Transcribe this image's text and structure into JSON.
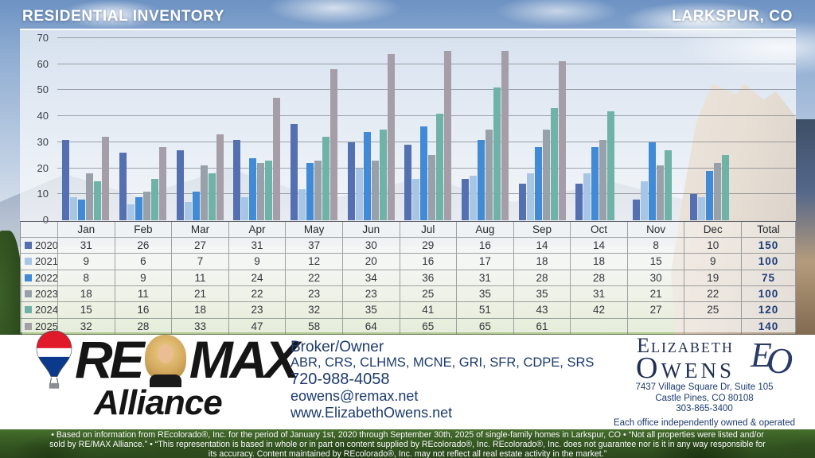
{
  "header": {
    "title": "RESIDENTIAL INVENTORY",
    "location": "LARKSPUR, CO"
  },
  "chart_data": {
    "type": "bar",
    "title": "Residential Inventory by month, Larkspur CO",
    "categories": [
      "Jan",
      "Feb",
      "Mar",
      "Apr",
      "May",
      "Jun",
      "Jul",
      "Aug",
      "Sep",
      "Oct",
      "Nov",
      "Dec"
    ],
    "series": [
      {
        "name": "2020",
        "color": "#5570b0",
        "values": [
          31,
          26,
          27,
          31,
          37,
          30,
          29,
          16,
          14,
          14,
          8,
          10
        ],
        "total": 150
      },
      {
        "name": "2021",
        "color": "#a7c6e6",
        "values": [
          9,
          6,
          7,
          9,
          12,
          20,
          16,
          17,
          18,
          18,
          15,
          9
        ],
        "total": 100
      },
      {
        "name": "2022",
        "color": "#418ad6",
        "values": [
          8,
          9,
          11,
          24,
          22,
          34,
          36,
          31,
          28,
          28,
          30,
          19
        ],
        "total": 75
      },
      {
        "name": "2023",
        "color": "#98a1aa",
        "values": [
          18,
          11,
          21,
          22,
          23,
          23,
          25,
          35,
          35,
          31,
          21,
          22
        ],
        "total": 100
      },
      {
        "name": "2024",
        "color": "#6fb2a7",
        "values": [
          15,
          16,
          18,
          23,
          32,
          35,
          41,
          51,
          43,
          42,
          27,
          25
        ],
        "total": 120
      },
      {
        "name": "2025",
        "color": "#a59ea8",
        "values": [
          32,
          28,
          33,
          47,
          58,
          64,
          65,
          65,
          61,
          null,
          null,
          null
        ],
        "total": 140
      }
    ],
    "ylim": [
      0,
      70
    ],
    "yticks": [
      0,
      10,
      20,
      30,
      40,
      50,
      60,
      70
    ],
    "grid": true,
    "legend_position": "table-row-headers",
    "total_label": "Total"
  },
  "footer": {
    "brand": {
      "re": "RE",
      "max": "MAX",
      "sub": "Alliance"
    },
    "broker": {
      "title": "Broker/Owner",
      "credentials": "ABR, CRS, CLHMS, MCNE, GRI, SFR, CDPE, SRS",
      "phone": "720-988-4058",
      "email": "eowens@remax.net",
      "website": "www.ElizabethOwens.net"
    },
    "agent": {
      "first_name": "Elizabeth",
      "last_name": "Owens",
      "monogram": "EO",
      "address_line1": "7437 Village Square Dr, Suite 105",
      "address_line2": "Castle Pines, CO 80108",
      "phone": "303-865-3400",
      "tagline": "Each office independently owned & operated"
    }
  },
  "disclaimer": {
    "line1": "• Based on information from REcolorado®, Inc. for the period of January 1st, 2020 through September 30th, 2025 of single-family homes in Larkspur, CO • “Not all properties were listed and/or",
    "line2": "sold by RE/MAX Alliance.” • “This representation is based in whole or in part on content supplied by REcolorado®, Inc. REcolorado®, Inc. does not guarantee nor is it in any way responsible for",
    "line3": "its accuracy. Content maintained by REcolorado®, Inc. may not reflect all real estate activity in the market.”"
  }
}
